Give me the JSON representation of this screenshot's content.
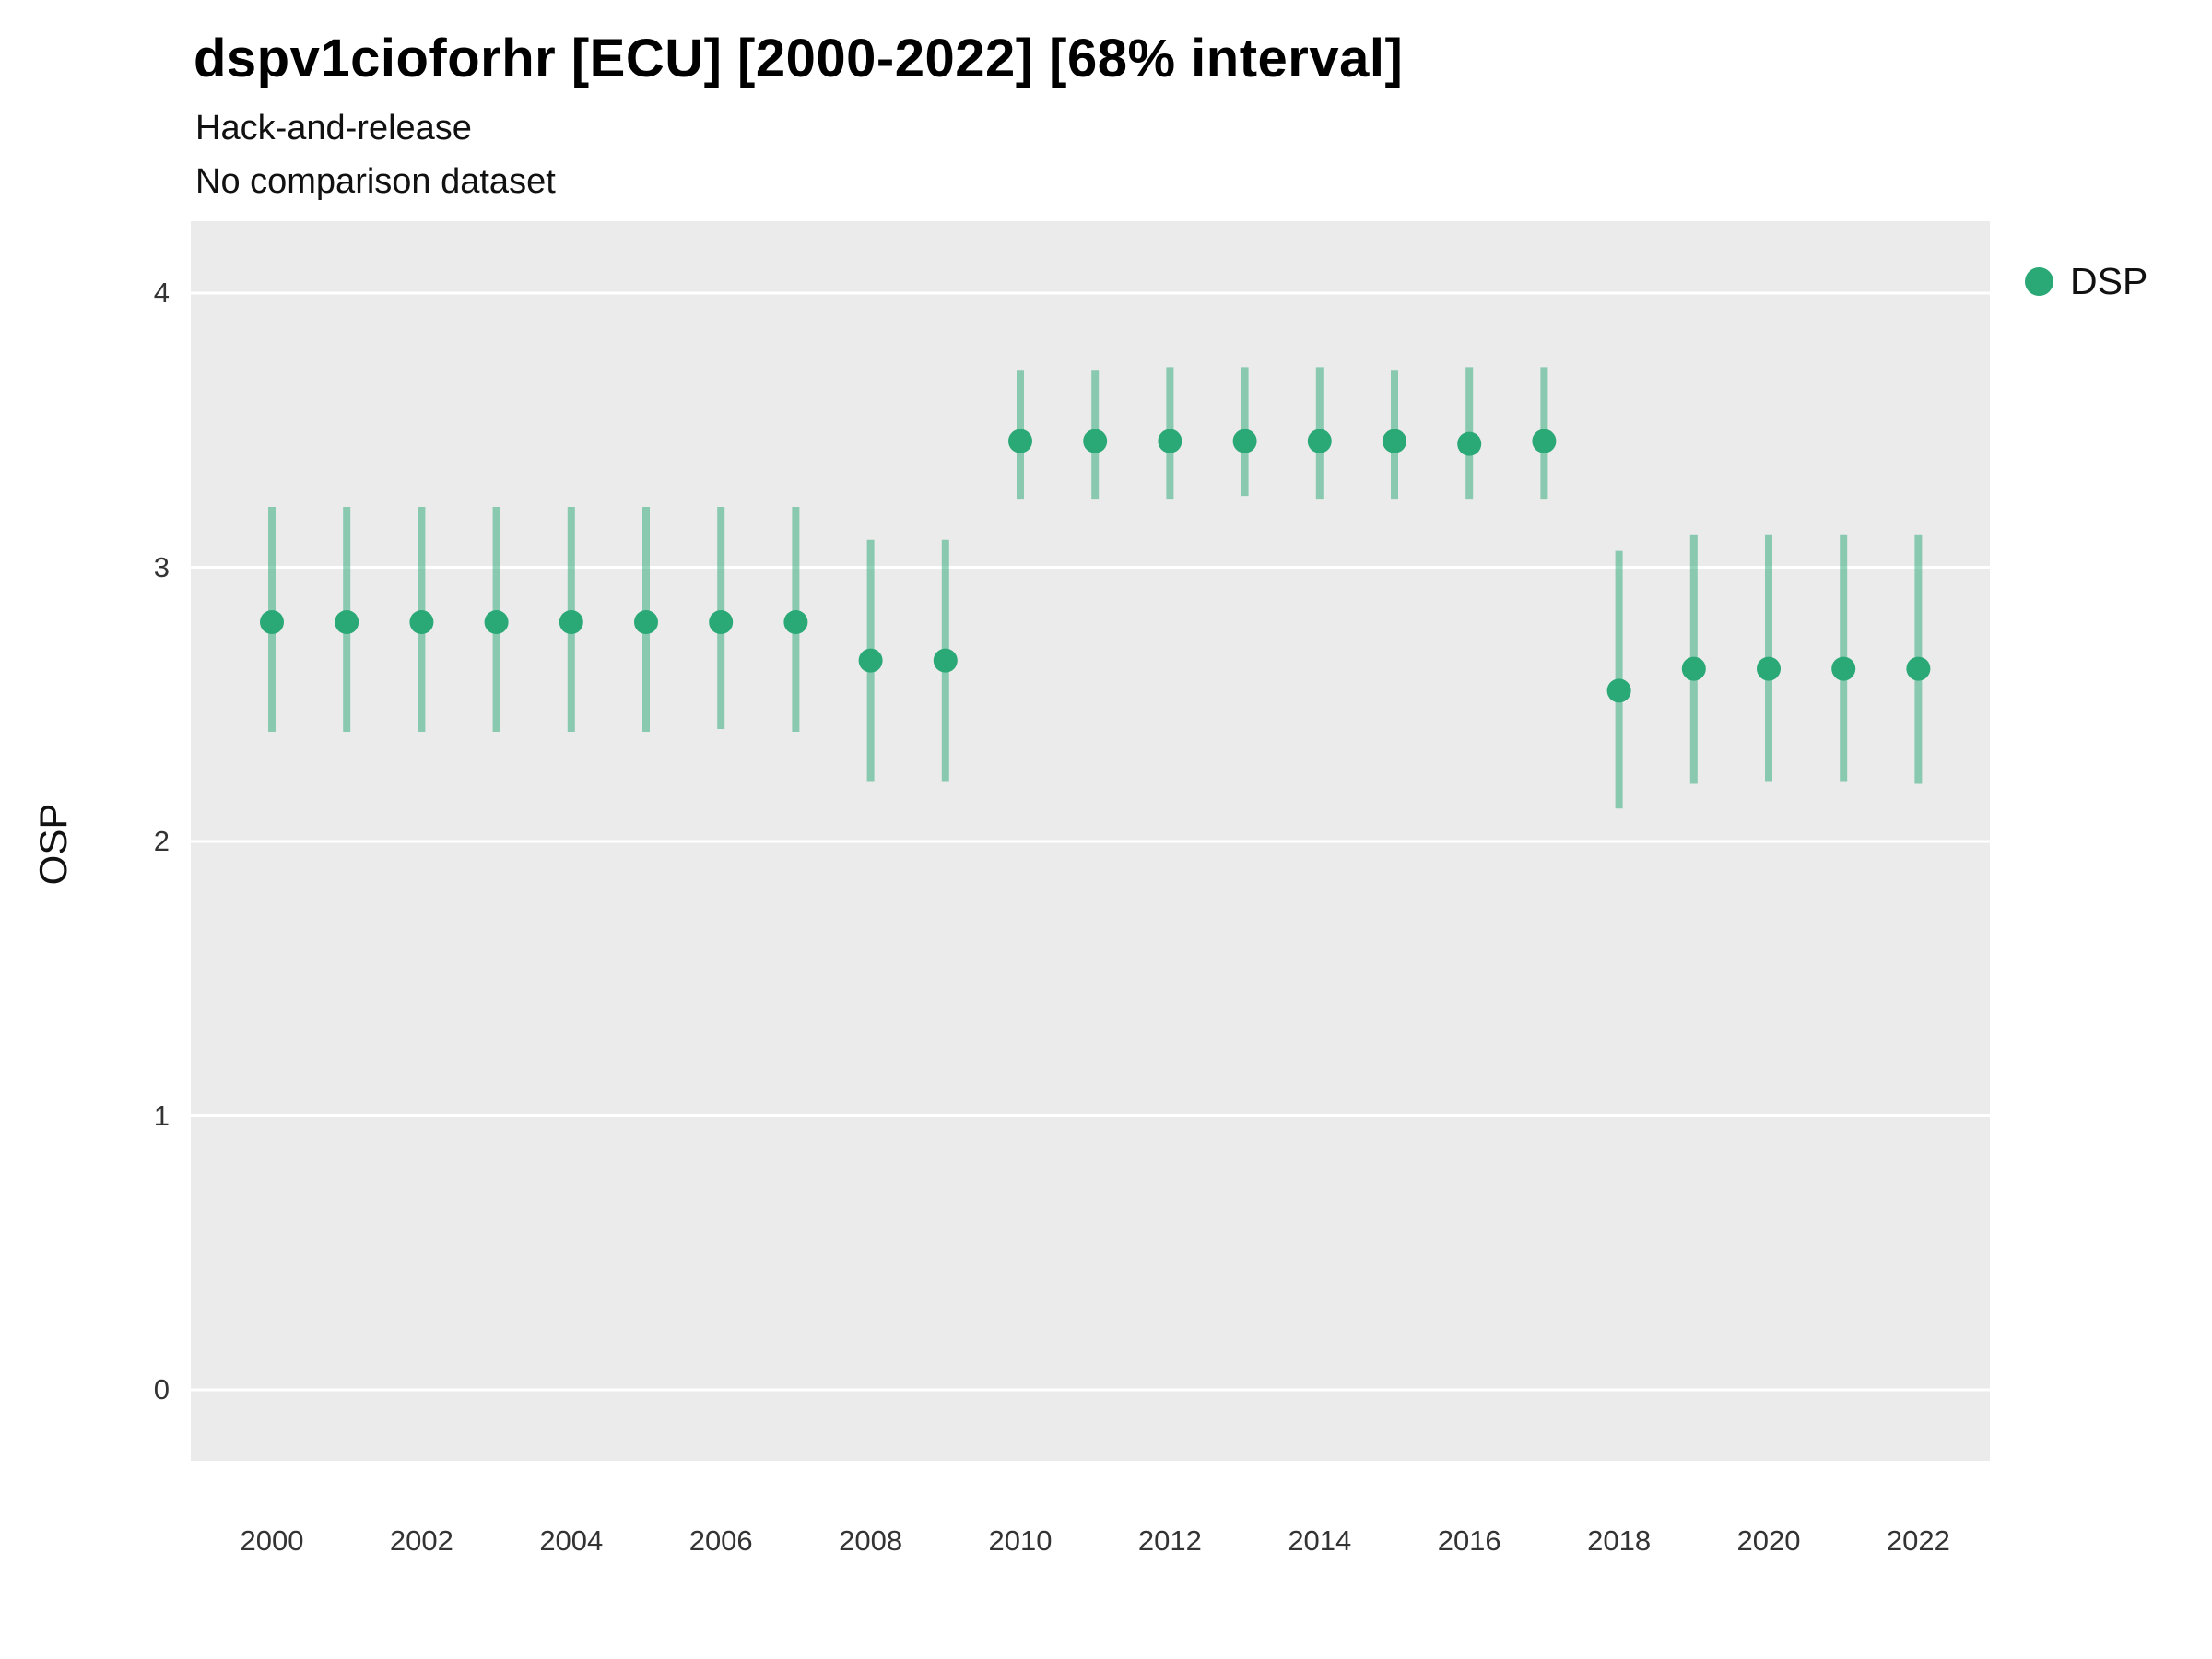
{
  "chart_data": {
    "type": "pointrange",
    "title": "dspv1cioforhr [ECU] [2000-2022] [68% interval]",
    "subtitles": [
      "Hack-and-release",
      "No comparison dataset"
    ],
    "xlabel": "",
    "ylabel": "OSP",
    "ylim": [
      -0.26,
      4.26
    ],
    "xlim": [
      1998.9,
      2023.0
    ],
    "y_ticks": [
      0,
      1,
      2,
      3,
      4
    ],
    "x_ticks": [
      2000,
      2002,
      2004,
      2006,
      2008,
      2010,
      2012,
      2014,
      2016,
      2018,
      2020,
      2022
    ],
    "grid": "horizontal-major-white",
    "panel_background": "#ebebeb",
    "legend_position": "right-top",
    "interval_label": "68% interval",
    "series": [
      {
        "name": "DSP",
        "color": "#2aa876",
        "interval_opacity": 0.5,
        "points": [
          {
            "x": 2000,
            "y": 2.8,
            "lo": 2.4,
            "hi": 3.22
          },
          {
            "x": 2001,
            "y": 2.8,
            "lo": 2.4,
            "hi": 3.22
          },
          {
            "x": 2002,
            "y": 2.8,
            "lo": 2.4,
            "hi": 3.22
          },
          {
            "x": 2003,
            "y": 2.8,
            "lo": 2.4,
            "hi": 3.22
          },
          {
            "x": 2004,
            "y": 2.8,
            "lo": 2.4,
            "hi": 3.22
          },
          {
            "x": 2005,
            "y": 2.8,
            "lo": 2.4,
            "hi": 3.22
          },
          {
            "x": 2006,
            "y": 2.8,
            "lo": 2.41,
            "hi": 3.22
          },
          {
            "x": 2007,
            "y": 2.8,
            "lo": 2.4,
            "hi": 3.22
          },
          {
            "x": 2008,
            "y": 2.66,
            "lo": 2.22,
            "hi": 3.1
          },
          {
            "x": 2009,
            "y": 2.66,
            "lo": 2.22,
            "hi": 3.1
          },
          {
            "x": 2010,
            "y": 3.46,
            "lo": 3.25,
            "hi": 3.72
          },
          {
            "x": 2011,
            "y": 3.46,
            "lo": 3.25,
            "hi": 3.72
          },
          {
            "x": 2012,
            "y": 3.46,
            "lo": 3.25,
            "hi": 3.73
          },
          {
            "x": 2013,
            "y": 3.46,
            "lo": 3.26,
            "hi": 3.73
          },
          {
            "x": 2014,
            "y": 3.46,
            "lo": 3.25,
            "hi": 3.73
          },
          {
            "x": 2015,
            "y": 3.46,
            "lo": 3.25,
            "hi": 3.72
          },
          {
            "x": 2016,
            "y": 3.45,
            "lo": 3.25,
            "hi": 3.73
          },
          {
            "x": 2017,
            "y": 3.46,
            "lo": 3.25,
            "hi": 3.73
          },
          {
            "x": 2018,
            "y": 2.55,
            "lo": 2.12,
            "hi": 3.06
          },
          {
            "x": 2019,
            "y": 2.63,
            "lo": 2.21,
            "hi": 3.12
          },
          {
            "x": 2020,
            "y": 2.63,
            "lo": 2.22,
            "hi": 3.12
          },
          {
            "x": 2021,
            "y": 2.63,
            "lo": 2.22,
            "hi": 3.12
          },
          {
            "x": 2022,
            "y": 2.63,
            "lo": 2.21,
            "hi": 3.12
          }
        ]
      }
    ]
  }
}
